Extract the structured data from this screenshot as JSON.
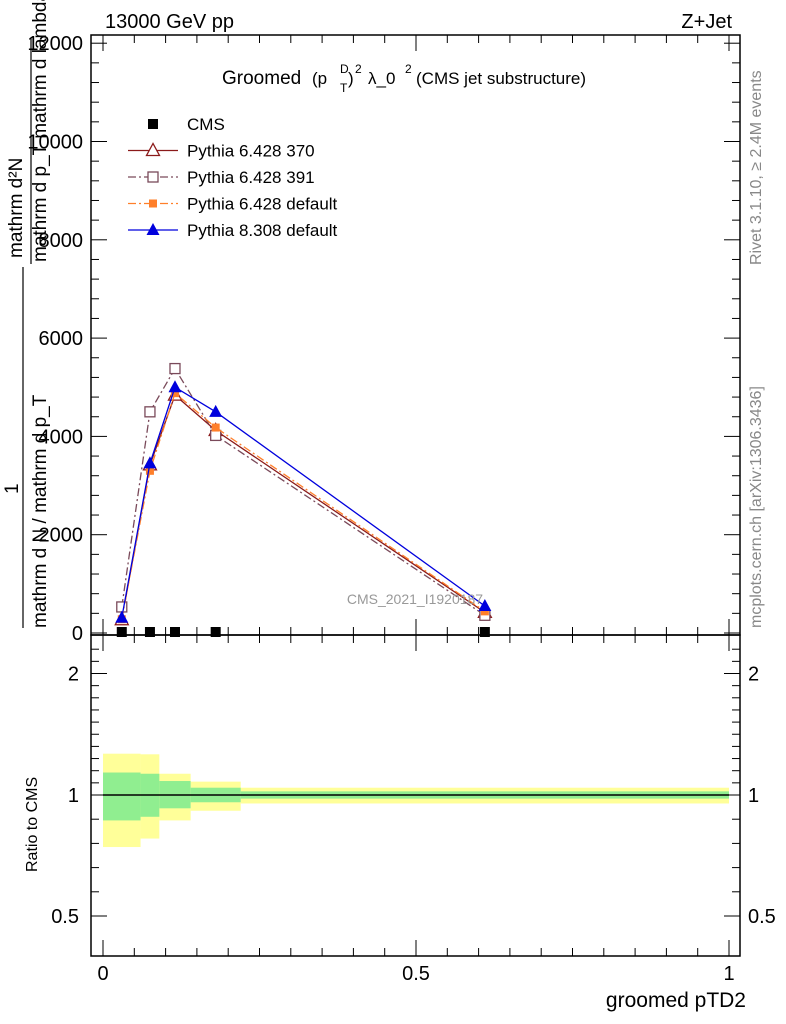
{
  "header": {
    "energy_label": "13000 GeV pp",
    "process_label": "Z+Jet"
  },
  "side_labels": {
    "rivet": "Rivet 3.1.10, ≥ 2.4M events",
    "mcplots": "mcplots.cern.ch [arXiv:1306.3436]"
  },
  "watermark": "CMS_2021_I1920187",
  "chart_data": [
    {
      "type": "line",
      "title": "Groomed (p_T^D)^2 λ_0^2 (CMS jet substructure)",
      "title_parts": {
        "main": "Groomed",
        "sup1": "D",
        "sub": "T",
        "sup2": "2",
        "rest": "λ_0",
        "sup3": "2",
        "tail": "(CMS jet substructure)"
      },
      "ylabel": "mathrm dN / mathrm d p_T mathrm d lambda",
      "ylabel_lines": {
        "numerator_top": "mathrm d²N",
        "numerator_bottom": "mathrm d p_T mathrm d lambda",
        "left_frac": "1",
        "denominator": "mathrm d N / mathrm d p_T"
      },
      "xlim": [
        0,
        1
      ],
      "ylim": [
        0,
        12000
      ],
      "y_ticks": [
        0,
        2000,
        4000,
        6000,
        8000,
        10000,
        12000
      ],
      "y_tick_labels": [
        "0",
        "2000",
        "4000",
        "6000",
        "8000",
        "10000",
        "12000"
      ],
      "legend_position": "top-left",
      "series": [
        {
          "name": "CMS",
          "color": "#000000",
          "marker": "square-filled",
          "line": "none",
          "x": [
            0.03,
            0.075,
            0.115,
            0.18,
            0.61
          ],
          "values": [
            0,
            0,
            0,
            0,
            0
          ]
        },
        {
          "name": "Pythia 6.428 370",
          "color": "#8b1a1a",
          "marker": "triangle-open",
          "line": "solid",
          "x": [
            0.03,
            0.075,
            0.115,
            0.18,
            0.61
          ],
          "values": [
            270,
            3420,
            4840,
            4120,
            420
          ]
        },
        {
          "name": "Pythia 6.428 391",
          "color": "#7a4a5a",
          "marker": "square-open",
          "line": "dashdot",
          "x": [
            0.03,
            0.075,
            0.115,
            0.18,
            0.61
          ],
          "values": [
            530,
            4500,
            5380,
            4020,
            360
          ]
        },
        {
          "name": "Pythia 6.428 default",
          "color": "#ff7f2a",
          "marker": "square-filled-small",
          "line": "dashdot",
          "x": [
            0.03,
            0.075,
            0.115,
            0.18,
            0.61
          ],
          "values": [
            280,
            3300,
            4880,
            4180,
            440
          ]
        },
        {
          "name": "Pythia 8.308 default",
          "color": "#0000dd",
          "marker": "triangle-filled",
          "line": "solid",
          "x": [
            0.03,
            0.075,
            0.115,
            0.18,
            0.61
          ],
          "values": [
            310,
            3450,
            5000,
            4500,
            550
          ]
        }
      ]
    },
    {
      "type": "area",
      "ylabel": "Ratio to CMS",
      "xlabel": "groomed pTD2",
      "xlim": [
        0,
        1
      ],
      "ylim": [
        0.4,
        2.3
      ],
      "y_ticks": [
        0.5,
        1,
        2
      ],
      "y_tick_labels": [
        "0.5",
        "1",
        "2"
      ],
      "x_ticks": [
        0,
        0.5,
        1
      ],
      "x_tick_labels": [
        "0",
        "0.5",
        "1"
      ],
      "reference_line": 1,
      "bands": [
        {
          "x0": 0.0,
          "x1": 0.06,
          "inner": [
            0.895,
            1.185
          ],
          "outer": [
            0.785,
            1.34
          ]
        },
        {
          "x0": 0.06,
          "x1": 0.09,
          "inner": [
            0.91,
            1.175
          ],
          "outer": [
            0.82,
            1.335
          ]
        },
        {
          "x0": 0.09,
          "x1": 0.14,
          "inner": [
            0.945,
            1.115
          ],
          "outer": [
            0.895,
            1.175
          ]
        },
        {
          "x0": 0.14,
          "x1": 0.22,
          "inner": [
            0.97,
            1.06
          ],
          "outer": [
            0.935,
            1.11
          ]
        },
        {
          "x0": 0.22,
          "x1": 1.0,
          "inner": [
            0.985,
            1.03
          ],
          "outer": [
            0.965,
            1.06
          ]
        }
      ],
      "band_colors": {
        "inner": "#90ee90",
        "outer": "#ffff99"
      }
    }
  ]
}
